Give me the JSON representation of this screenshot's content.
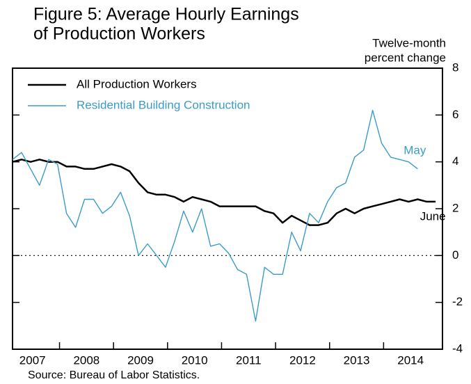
{
  "chart_data": {
    "type": "line",
    "title_lines": [
      "Figure 5: Average Hourly Earnings",
      "of Production Workers"
    ],
    "ylabel_lines": [
      "Twelve-month",
      "percent change"
    ],
    "source": "Source:  Bureau of Labor Statistics.",
    "xlim": [
      2007.13,
      2015.09
    ],
    "xticks": [
      {
        "value": 2007.5,
        "label": "2007"
      },
      {
        "value": 2008.5,
        "label": "2008"
      },
      {
        "value": 2009.5,
        "label": "2009"
      },
      {
        "value": 2010.5,
        "label": "2010"
      },
      {
        "value": 2011.5,
        "label": "2011"
      },
      {
        "value": 2012.5,
        "label": "2012"
      },
      {
        "value": 2013.5,
        "label": "2013"
      },
      {
        "value": 2014.5,
        "label": "2014"
      }
    ],
    "ylim": [
      -4,
      8
    ],
    "yticks": [
      8,
      6,
      4,
      2,
      0,
      -2,
      -4
    ],
    "legend": "upper left",
    "series": [
      {
        "name": "All Production Workers",
        "color": "#000000",
        "end_label": "June",
        "x": [
          2007.13,
          2007.297,
          2007.463,
          2007.63,
          2007.797,
          2007.963,
          2008.13,
          2008.297,
          2008.463,
          2008.63,
          2008.797,
          2008.963,
          2009.13,
          2009.297,
          2009.463,
          2009.63,
          2009.797,
          2009.963,
          2010.13,
          2010.297,
          2010.463,
          2010.63,
          2010.797,
          2010.963,
          2011.13,
          2011.297,
          2011.463,
          2011.63,
          2011.797,
          2011.963,
          2012.13,
          2012.297,
          2012.463,
          2012.63,
          2012.797,
          2012.963,
          2013.13,
          2013.297,
          2013.463,
          2013.63,
          2013.797,
          2013.963,
          2014.13,
          2014.297,
          2014.463,
          2014.63,
          2014.797,
          2014.963
        ],
        "values": [
          4.0,
          4.1,
          4.0,
          4.1,
          4.0,
          4.0,
          3.8,
          3.8,
          3.7,
          3.7,
          3.8,
          3.9,
          3.8,
          3.6,
          3.1,
          2.7,
          2.6,
          2.6,
          2.5,
          2.3,
          2.5,
          2.4,
          2.3,
          2.1,
          2.1,
          2.1,
          2.1,
          2.1,
          1.9,
          1.8,
          1.4,
          1.7,
          1.5,
          1.3,
          1.3,
          1.4,
          1.8,
          2.0,
          1.8,
          2.0,
          2.1,
          2.2,
          2.3,
          2.4,
          2.3,
          2.4,
          2.3,
          2.3
        ]
      },
      {
        "name": "Residential Building Construction",
        "color": "#3a9cc8",
        "end_label": "May",
        "x": [
          2007.13,
          2007.297,
          2007.463,
          2007.63,
          2007.797,
          2007.963,
          2008.13,
          2008.297,
          2008.463,
          2008.63,
          2008.797,
          2008.963,
          2009.13,
          2009.297,
          2009.463,
          2009.63,
          2009.797,
          2009.963,
          2010.13,
          2010.297,
          2010.463,
          2010.63,
          2010.797,
          2010.963,
          2011.13,
          2011.297,
          2011.463,
          2011.63,
          2011.797,
          2011.963,
          2012.13,
          2012.297,
          2012.463,
          2012.63,
          2012.797,
          2012.963,
          2013.13,
          2013.297,
          2013.463,
          2013.63,
          2013.797,
          2013.963,
          2014.13,
          2014.297,
          2014.463,
          2014.63
        ],
        "values": [
          4.1,
          4.4,
          3.7,
          3.0,
          4.1,
          3.9,
          1.8,
          1.2,
          2.4,
          2.4,
          1.8,
          2.1,
          2.7,
          1.7,
          0.0,
          0.5,
          0.0,
          -0.5,
          0.6,
          1.9,
          1.0,
          2.0,
          0.4,
          0.5,
          0.1,
          -0.6,
          -0.8,
          -2.8,
          -0.5,
          -0.8,
          -0.8,
          1.0,
          0.2,
          1.8,
          1.4,
          2.3,
          2.9,
          3.1,
          4.2,
          4.5,
          6.2,
          4.8,
          4.2,
          4.1,
          4.0,
          3.7
        ]
      }
    ]
  }
}
